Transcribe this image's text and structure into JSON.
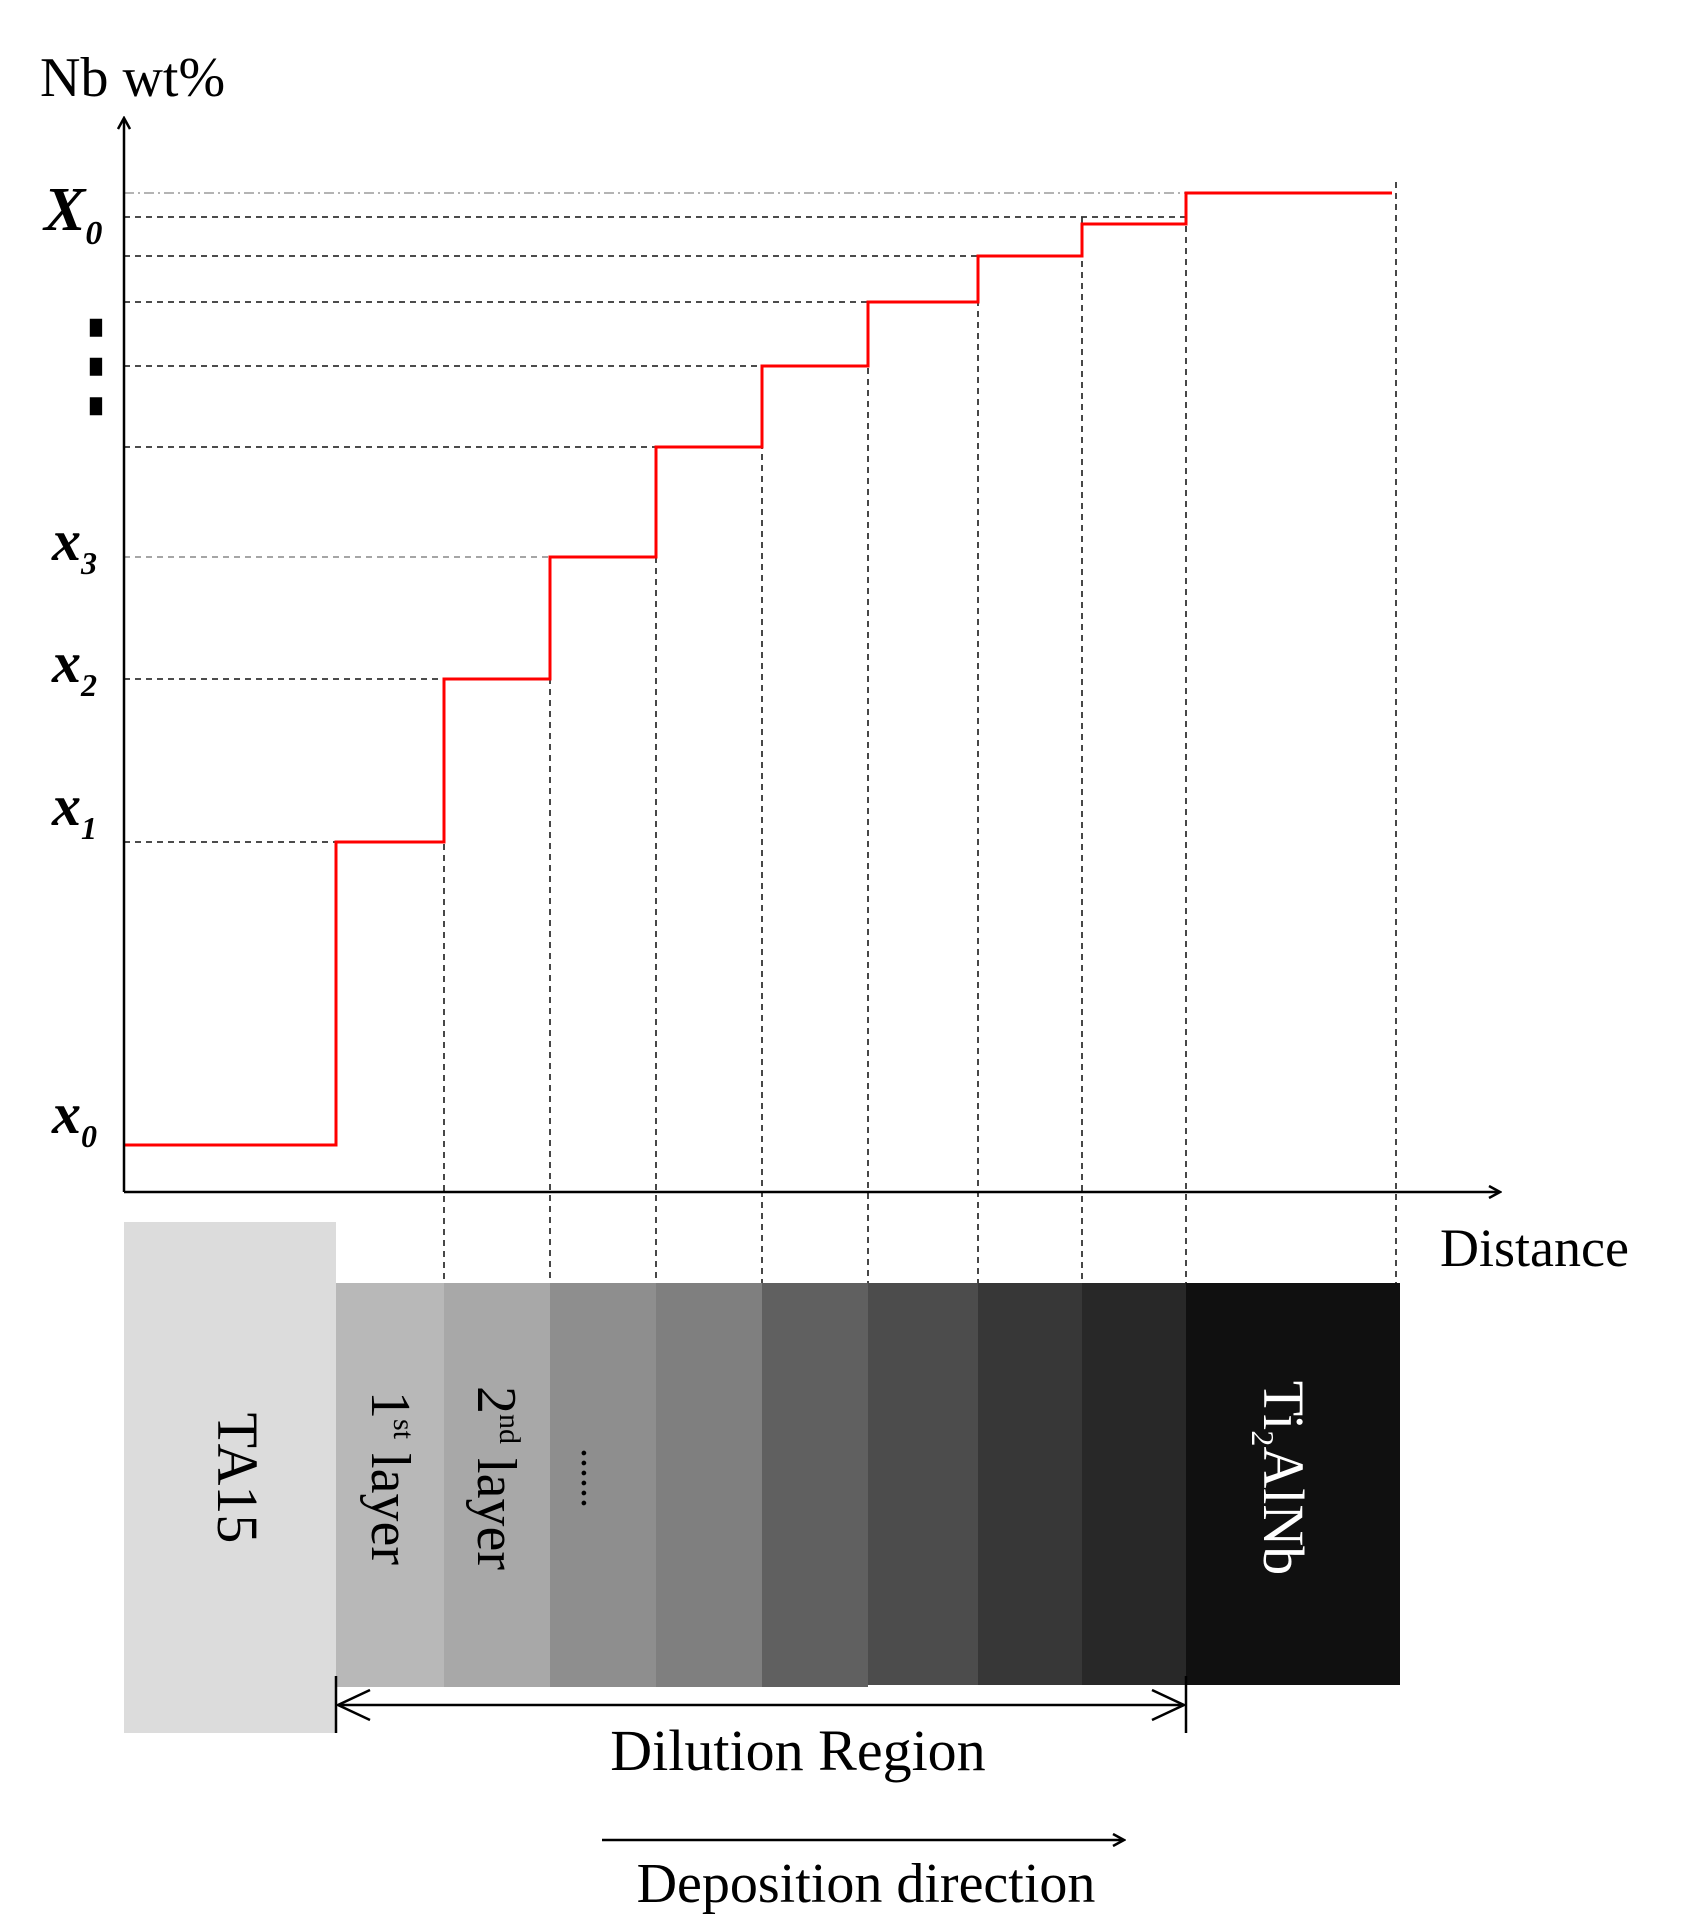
{
  "y_axis": {
    "label": "Nb wt%"
  },
  "x_axis": {
    "label": "Distance"
  },
  "tick_labels": {
    "x0": {
      "base": "x",
      "sub": "0"
    },
    "x1": {
      "base": "x",
      "sub": "1"
    },
    "x2": {
      "base": "x",
      "sub": "2"
    },
    "x3": {
      "base": "x",
      "sub": "3"
    },
    "dots": "⋮",
    "X0": {
      "base": "X",
      "sub": "0"
    }
  },
  "layers": {
    "substrate": "TA15",
    "first": {
      "num": "1",
      "sup": "st",
      "word": " layer"
    },
    "second": {
      "num": "2",
      "sup": "nd",
      "word": " layer"
    },
    "ellipsis": "......",
    "top": {
      "a": "Ti",
      "sub": "2",
      "b": "AlNb"
    }
  },
  "dilution_label": "Dilution Region",
  "deposition_label": "Deposition direction",
  "colors": {
    "profile": "#ff0000",
    "substrate": "#dcdcdc",
    "layer_fills": [
      "#b8b8b8",
      "#a8a8a8",
      "#8e8e8e",
      "#7f7f7f",
      "#606060",
      "#4c4c4c",
      "#373737",
      "#282828"
    ],
    "top_block": "#101010",
    "top_text": "#ffffff"
  }
}
